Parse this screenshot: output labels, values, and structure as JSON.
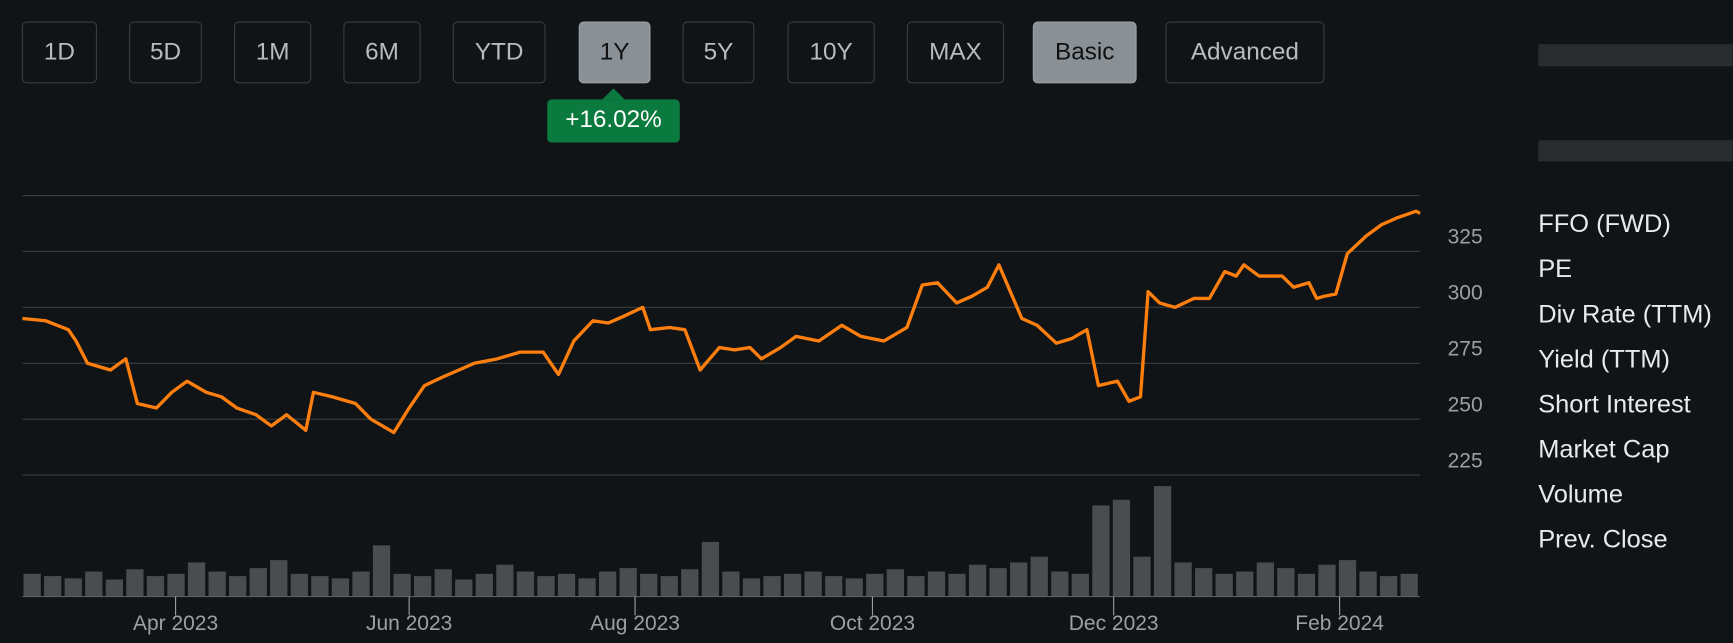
{
  "buttons": [
    "1D",
    "5D",
    "1M",
    "6M",
    "YTD",
    "1Y",
    "5Y",
    "10Y",
    "MAX",
    "Basic",
    "Advanced"
  ],
  "active_buttons": [
    "1Y",
    "Basic"
  ],
  "change_badge": "+16.02%",
  "stats": [
    "FFO (FWD)",
    "PE",
    "Div Rate (TTM)",
    "Yield (TTM)",
    "Short Interest",
    "Market Cap",
    "Volume",
    "Prev. Close"
  ],
  "chart_data": {
    "type": "line",
    "color": "#ff7f0e",
    "x": [
      0,
      6,
      12,
      14,
      17,
      23,
      27,
      30,
      35,
      39,
      43,
      48,
      52,
      56,
      61,
      65,
      69,
      74,
      76,
      81,
      87,
      91,
      97,
      101,
      105,
      110,
      114,
      118,
      124,
      130,
      136,
      140,
      144,
      149,
      153,
      157,
      162,
      164,
      169,
      173,
      177,
      182,
      186,
      190,
      193,
      198,
      202,
      208,
      214,
      219,
      225,
      231,
      235,
      239,
      244,
      248,
      252,
      255,
      258,
      261,
      265,
      270,
      274,
      278,
      281,
      286,
      289,
      292,
      294,
      297,
      301,
      306,
      310,
      314,
      317,
      319,
      323,
      329,
      332,
      336,
      338,
      340,
      343,
      346,
      351,
      355,
      359,
      364,
      365
    ],
    "values": [
      295,
      294,
      290,
      285,
      275,
      272,
      277,
      257,
      255,
      262,
      267,
      262,
      260,
      255,
      252,
      247,
      252,
      245,
      262,
      260,
      257,
      250,
      244,
      255,
      265,
      269,
      272,
      275,
      277,
      280,
      280,
      270,
      285,
      294,
      293,
      296,
      300,
      290,
      291,
      290,
      272,
      282,
      281,
      282,
      277,
      282,
      287,
      285,
      292,
      287,
      285,
      291,
      310,
      311,
      302,
      305,
      309,
      319,
      307,
      295,
      292,
      284,
      286,
      290,
      265,
      267,
      258,
      260,
      307,
      302,
      300,
      304,
      304,
      316,
      314,
      319,
      314,
      314,
      309,
      311,
      304,
      305,
      306,
      324,
      332,
      337,
      340,
      343,
      342
    ],
    "xlim": [
      0,
      365
    ],
    "xticks": [
      {
        "value": 40,
        "label": "Apr 2023"
      },
      {
        "value": 101,
        "label": "Jun 2023"
      },
      {
        "value": 160,
        "label": "Aug 2023"
      },
      {
        "value": 222,
        "label": "Oct 2023"
      },
      {
        "value": 285,
        "label": "Dec 2023"
      },
      {
        "value": 344,
        "label": "Feb 2024"
      }
    ],
    "ylim": [
      225,
      350
    ],
    "yticks": [
      225,
      250,
      275,
      300,
      325
    ],
    "grid": true,
    "volume": {
      "color": "#4a4d50",
      "values": [
        20,
        18,
        16,
        22,
        15,
        24,
        18,
        20,
        30,
        22,
        18,
        25,
        32,
        20,
        18,
        16,
        22,
        45,
        20,
        18,
        24,
        15,
        20,
        28,
        22,
        18,
        20,
        16,
        22,
        25,
        20,
        18,
        24,
        48,
        22,
        16,
        18,
        20,
        22,
        18,
        16,
        20,
        24,
        18,
        22,
        20,
        28,
        25,
        30,
        35,
        22,
        20,
        80,
        85,
        35,
        97,
        30,
        25,
        20,
        22,
        30,
        25,
        20,
        28,
        32,
        22,
        18,
        20
      ]
    }
  }
}
